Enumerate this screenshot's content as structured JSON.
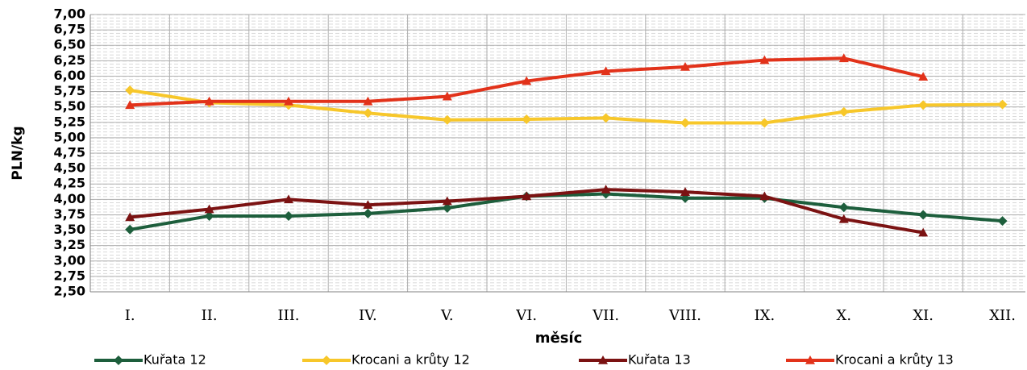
{
  "chart_data": {
    "type": "line",
    "y_label": "PLN/kg",
    "x_label": "měsíc",
    "categories": [
      "I.",
      "II.",
      "III.",
      "IV.",
      "V.",
      "VI.",
      "VII.",
      "VIII.",
      "IX.",
      "X.",
      "XI.",
      "XII."
    ],
    "series": [
      {
        "name": "Kuřata 12",
        "color": "#1d5e3c",
        "marker": "diamond",
        "values": [
          3.51,
          3.73,
          3.73,
          3.77,
          3.86,
          4.05,
          4.09,
          4.02,
          4.02,
          3.87,
          3.75,
          3.65
        ]
      },
      {
        "name": "Krocani a krůty 12",
        "color": "#f7c72a",
        "marker": "diamond",
        "values": [
          5.77,
          5.57,
          5.53,
          5.4,
          5.29,
          5.3,
          5.32,
          5.24,
          5.24,
          5.42,
          5.53,
          5.54
        ]
      },
      {
        "name": "Kuřata 13",
        "color": "#7b1212",
        "marker": "triangle",
        "values": [
          3.71,
          3.84,
          4.0,
          3.91,
          3.97,
          4.05,
          4.16,
          4.12,
          4.05,
          3.68,
          3.46,
          null
        ]
      },
      {
        "name": "Krocani a krůty 13",
        "color": "#e2321a",
        "marker": "triangle",
        "values": [
          5.53,
          5.59,
          5.59,
          5.59,
          5.67,
          5.92,
          6.08,
          6.15,
          6.26,
          6.29,
          5.99,
          null
        ]
      }
    ],
    "ylim": [
      2.5,
      7
    ],
    "yticks": [
      {
        "value": 2.5,
        "label": "2,50"
      },
      {
        "value": 2.75,
        "label": "2,75"
      },
      {
        "value": 3,
        "label": "3,00"
      },
      {
        "value": 3.25,
        "label": "3,25"
      },
      {
        "value": 3.5,
        "label": "3,50"
      },
      {
        "value": 3.75,
        "label": "3,75"
      },
      {
        "value": 4,
        "label": "4,00"
      },
      {
        "value": 4.25,
        "label": "4,25"
      },
      {
        "value": 4.5,
        "label": "4,50"
      },
      {
        "value": 4.75,
        "label": "4,75"
      },
      {
        "value": 5,
        "label": "5,00"
      },
      {
        "value": 5.25,
        "label": "5,25"
      },
      {
        "value": 5.5,
        "label": "5,50"
      },
      {
        "value": 5.75,
        "label": "5,75"
      },
      {
        "value": 6,
        "label": "6,00"
      },
      {
        "value": 6.25,
        "label": "6,25"
      },
      {
        "value": 6.5,
        "label": "6,50"
      },
      {
        "value": 6.75,
        "label": "6,75"
      },
      {
        "value": 7,
        "label": "7,00"
      }
    ],
    "grid": true,
    "legend": "bottom"
  }
}
